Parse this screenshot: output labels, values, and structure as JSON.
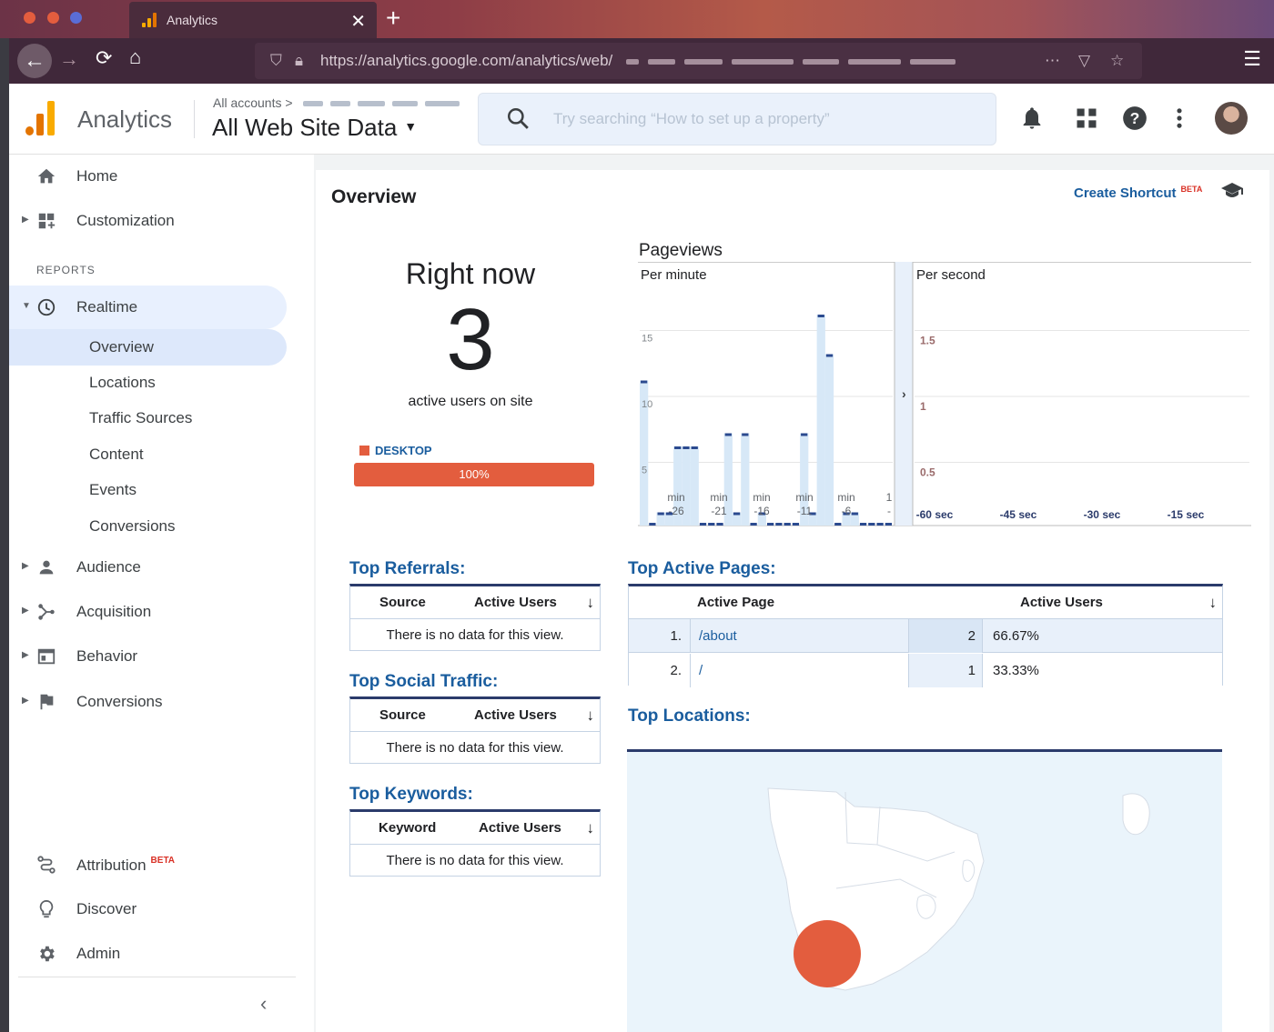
{
  "browser": {
    "tab_title": "Analytics",
    "url": "https://analytics.google.com/analytics/web/",
    "traffic_colors": [
      "#e35d3e",
      "#e35d3e",
      "#5a6dd6"
    ]
  },
  "header": {
    "app_name": "Analytics",
    "breadcrumb": "All accounts",
    "breadcrumb_sep": ">",
    "view_title": "All Web Site Data",
    "search_placeholder": "Try searching “How to set up a property”"
  },
  "sidebar": {
    "home": "Home",
    "customization": "Customization",
    "reports_header": "REPORTS",
    "realtime": "Realtime",
    "realtime_items": [
      "Overview",
      "Locations",
      "Traffic Sources",
      "Content",
      "Events",
      "Conversions"
    ],
    "sections": [
      "Audience",
      "Acquisition",
      "Behavior",
      "Conversions"
    ],
    "attribution": "Attribution",
    "beta": "BETA",
    "discover": "Discover",
    "admin": "Admin"
  },
  "overview": {
    "title": "Overview",
    "create_shortcut": "Create Shortcut",
    "beta": "BETA",
    "right_now": "Right now",
    "active_users": "3",
    "active_users_label": "active users on site",
    "device_label": "DESKTOP",
    "device_pct": "100%",
    "device_fraction": 1.0
  },
  "chart_data": {
    "type": "bar",
    "title": "Pageviews",
    "panels": [
      {
        "name": "Per minute",
        "y_ticks": [
          "15",
          "10",
          "5"
        ],
        "ylim": [
          0,
          20
        ],
        "x_ticks": [
          "min -26",
          "min -21",
          "min -16",
          "min -11",
          "min -6",
          "1 -"
        ],
        "values": [
          11,
          0,
          1,
          1,
          6,
          6,
          6,
          0,
          0,
          0,
          7,
          1,
          7,
          0,
          1,
          0,
          0,
          0,
          0,
          7,
          1,
          16,
          13,
          0,
          1,
          1,
          0,
          0,
          0,
          0
        ]
      },
      {
        "name": "Per second",
        "y_ticks": [
          "1.5",
          "1",
          "0.5"
        ],
        "ylim": [
          0,
          2
        ],
        "x_ticks": [
          "-60 sec",
          "-45 sec",
          "-30 sec",
          "-15 sec"
        ],
        "values": []
      }
    ]
  },
  "top_referrals": {
    "title": "Top Referrals:",
    "col1": "Source",
    "col2": "Active Users",
    "empty": "There is no data for this view."
  },
  "top_social": {
    "title": "Top Social Traffic:",
    "col1": "Source",
    "col2": "Active Users",
    "empty": "There is no data for this view."
  },
  "top_keywords": {
    "title": "Top Keywords:",
    "col1": "Keyword",
    "col2": "Active Users",
    "empty": "There is no data for this view."
  },
  "top_pages": {
    "title": "Top Active Pages:",
    "col1": "Active Page",
    "col2": "Active Users",
    "rows": [
      {
        "rank": "1.",
        "page": "/about",
        "users": "2",
        "pct": "66.67%"
      },
      {
        "rank": "2.",
        "page": "/",
        "users": "1",
        "pct": "33.33%"
      }
    ]
  },
  "top_locations": {
    "title": "Top Locations:",
    "marker_color": "#e35d3e"
  },
  "colors": {
    "accent": "#1a5d9e",
    "orange": "#e35d3e",
    "bar": "#d7e8f7",
    "bar_top": "#2b4a8f"
  }
}
